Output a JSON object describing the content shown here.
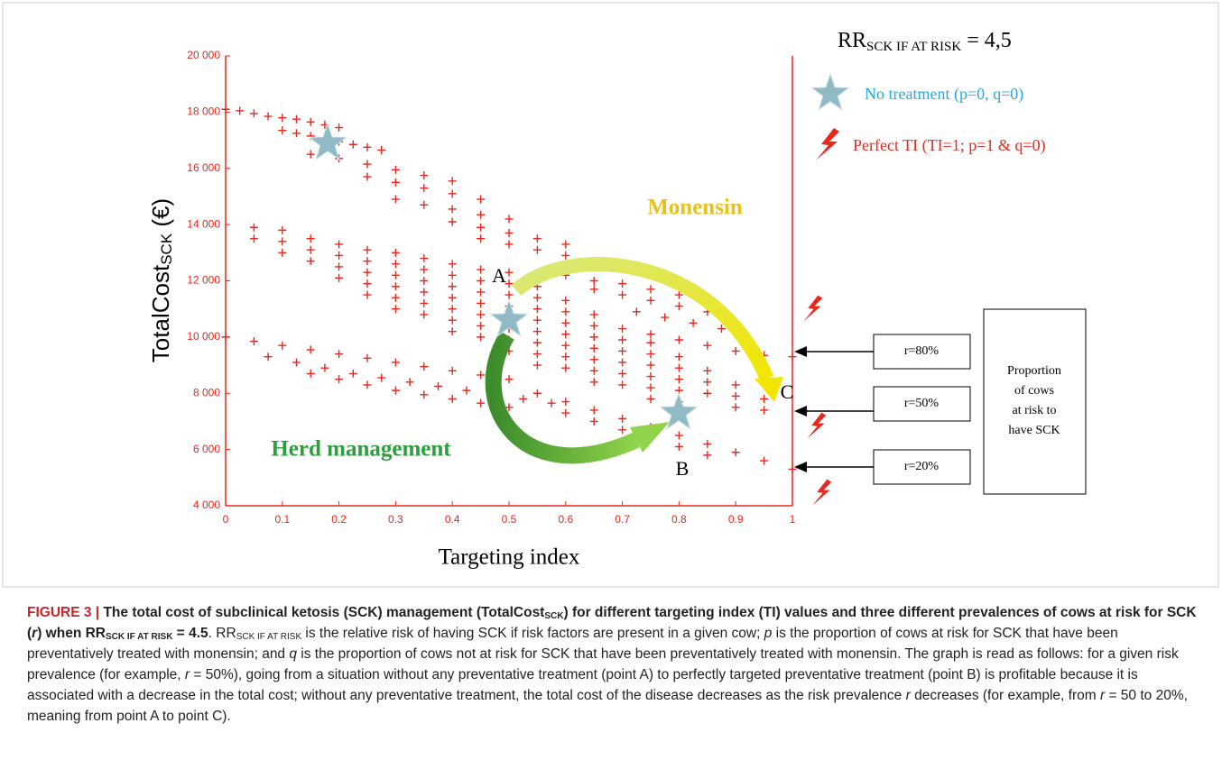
{
  "chart_data": {
    "type": "scatter",
    "xlabel": "Targeting index",
    "ylabel": {
      "main": "TotalCost",
      "sub": "SCK",
      "unit": " (€)"
    },
    "xlim": [
      0,
      1
    ],
    "ylim": [
      4000,
      20000
    ],
    "xticks": [
      0,
      0.1,
      0.2,
      0.3,
      0.4,
      0.5,
      0.6,
      0.7,
      0.8,
      0.9,
      1
    ],
    "yticks": [
      {
        "value": 4000,
        "label": "4 000"
      },
      {
        "value": 6000,
        "label": "6 000"
      },
      {
        "value": 8000,
        "label": "8 000"
      },
      {
        "value": 10000,
        "label": "10 000"
      },
      {
        "value": 12000,
        "label": "12 000"
      },
      {
        "value": 14000,
        "label": "14 000"
      },
      {
        "value": 16000,
        "label": "16 000"
      },
      {
        "value": 18000,
        "label": "18 000"
      },
      {
        "value": 20000,
        "label": "20 000"
      }
    ],
    "axis_color": "#e8281e",
    "series": [
      {
        "name": "r=80%",
        "color": "#e8281e",
        "x": [
          0,
          0.025,
          0.05,
          0.075,
          0.1,
          0.125,
          0.15,
          0.175,
          0.2,
          0.1,
          0.125,
          0.15,
          0.175,
          0.2,
          0.225,
          0.25,
          0.275,
          0.15,
          0.2,
          0.25,
          0.3,
          0.35,
          0.4,
          0.25,
          0.3,
          0.35,
          0.4,
          0.45,
          0.3,
          0.35,
          0.4,
          0.45,
          0.5,
          0.4,
          0.45,
          0.5,
          0.55,
          0.6,
          0.45,
          0.5,
          0.55,
          0.6,
          0.65,
          0.7,
          0.6,
          0.65,
          0.7,
          0.75,
          0.8,
          0.65,
          0.7,
          0.75,
          0.8,
          0.85,
          0.725,
          0.775,
          0.825,
          0.875,
          0.9,
          0.75,
          0.8,
          0.85,
          0.9,
          0.95,
          1
        ],
        "values": [
          18100,
          18050,
          17950,
          17850,
          17800,
          17750,
          17650,
          17550,
          17450,
          17350,
          17250,
          17150,
          17050,
          16950,
          16850,
          16750,
          16650,
          16500,
          16350,
          16150,
          15950,
          15750,
          15550,
          15700,
          15500,
          15300,
          15100,
          14900,
          14900,
          14700,
          14550,
          14350,
          14200,
          14100,
          13900,
          13700,
          13500,
          13300,
          13500,
          13300,
          13100,
          12900,
          12700,
          12500,
          12200,
          12000,
          11900,
          11700,
          11500,
          11700,
          11500,
          11300,
          11100,
          10900,
          10900,
          10700,
          10500,
          10300,
          10200,
          10100,
          9900,
          9700,
          9500,
          9350,
          9300
        ]
      },
      {
        "name": "r=50%",
        "color": "#e8281e",
        "x": [
          0.05,
          0.05,
          0.1,
          0.1,
          0.1,
          0.15,
          0.15,
          0.15,
          0.2,
          0.2,
          0.2,
          0.2,
          0.25,
          0.25,
          0.25,
          0.25,
          0.25,
          0.3,
          0.3,
          0.3,
          0.3,
          0.3,
          0.3,
          0.35,
          0.35,
          0.35,
          0.35,
          0.35,
          0.35,
          0.4,
          0.4,
          0.4,
          0.4,
          0.4,
          0.4,
          0.4,
          0.45,
          0.45,
          0.45,
          0.45,
          0.45,
          0.45,
          0.45,
          0.5,
          0.5,
          0.5,
          0.5,
          0.5,
          0.5,
          0.5,
          0.5,
          0.55,
          0.55,
          0.55,
          0.55,
          0.55,
          0.55,
          0.55,
          0.55,
          0.6,
          0.6,
          0.6,
          0.6,
          0.6,
          0.6,
          0.6,
          0.65,
          0.65,
          0.65,
          0.65,
          0.65,
          0.65,
          0.65,
          0.7,
          0.7,
          0.7,
          0.7,
          0.7,
          0.7,
          0.75,
          0.75,
          0.75,
          0.75,
          0.75,
          0.75,
          0.8,
          0.8,
          0.8,
          0.8,
          0.8,
          0.85,
          0.85,
          0.85,
          0.9,
          0.9,
          0.9,
          0.95,
          0.95
        ],
        "values": [
          13900,
          13500,
          13800,
          13400,
          13000,
          13500,
          13100,
          12700,
          13300,
          12900,
          12500,
          12100,
          13100,
          12700,
          12300,
          11900,
          11500,
          13000,
          12600,
          12200,
          11800,
          11400,
          11000,
          12800,
          12400,
          12000,
          11600,
          11200,
          10800,
          12600,
          12200,
          11800,
          11400,
          11000,
          10600,
          10200,
          12400,
          12000,
          11600,
          11200,
          10800,
          10400,
          10000,
          12300,
          11900,
          11500,
          11100,
          10700,
          10300,
          9900,
          9500,
          11800,
          11400,
          11000,
          10600,
          10200,
          9800,
          9400,
          9000,
          11300,
          10900,
          10500,
          10100,
          9700,
          9300,
          8900,
          10800,
          10400,
          10000,
          9600,
          9200,
          8800,
          8400,
          10300,
          9900,
          9500,
          9100,
          8700,
          8300,
          9800,
          9400,
          9000,
          8600,
          8200,
          7800,
          9300,
          8900,
          8500,
          8100,
          7700,
          8800,
          8400,
          8000,
          8300,
          7900,
          7500,
          7800,
          7400
        ]
      },
      {
        "name": "r=20%",
        "color": "#e8281e",
        "x": [
          0,
          0.05,
          0.1,
          0.15,
          0.2,
          0.25,
          0.3,
          0.35,
          0.4,
          0.45,
          0.5,
          0.075,
          0.125,
          0.175,
          0.225,
          0.275,
          0.325,
          0.375,
          0.425,
          0.475,
          0.525,
          0.575,
          0.15,
          0.2,
          0.25,
          0.3,
          0.35,
          0.4,
          0.45,
          0.5,
          0.55,
          0.6,
          0.65,
          0.7,
          0.75,
          0.8,
          0.85,
          0.9,
          0.95,
          1,
          0.6,
          0.65,
          0.7,
          0.75,
          0.8,
          0.85
        ],
        "values": [
          10000,
          9850,
          9700,
          9550,
          9400,
          9250,
          9100,
          8950,
          8800,
          8650,
          8500,
          9300,
          9100,
          8900,
          8700,
          8550,
          8400,
          8250,
          8100,
          7950,
          7800,
          7650,
          8700,
          8500,
          8300,
          8100,
          7950,
          7800,
          7650,
          7500,
          8000,
          7700,
          7400,
          7100,
          6800,
          6500,
          6200,
          5900,
          5600,
          5300,
          7300,
          7000,
          6700,
          6400,
          6100,
          5800
        ]
      }
    ],
    "annotations": {
      "rr": {
        "main": "RR",
        "sub": "SCK IF AT RISK",
        "value": " = 4,5"
      },
      "no_treatment": "No treatment (p=0, q=0)",
      "perfect_ti": "Perfect TI (TI=1; p=1 & q=0)",
      "monensin": "Monensin",
      "herd_management": "Herd management",
      "point_a": "A",
      "point_b": "B",
      "point_c": "C",
      "proportion_box": [
        "Proportion",
        "of cows",
        "at risk to",
        "have SCK"
      ]
    }
  },
  "caption": {
    "label": "FIGURE 3 |",
    "title": [
      "The total cost of subclinical ketosis (SCK) management (TotalCost",
      "SCK",
      ") for different targeting index (TI) values and three different prevalences of cows at risk for SCK (",
      "r",
      ") when RR",
      "SCK IF AT RISK",
      " = 4.5"
    ],
    "body": [
      "RR",
      "SCK IF AT RISK",
      " is the relative risk of having SCK if risk factors are present in a given cow; ",
      "p",
      " is the proportion of cows at risk for SCK that have been preventatively treated with monensin; and ",
      "q",
      " is the proportion of cows not at risk for SCK that have been preventatively treated with monensin. The graph is read as follows: for a given risk prevalence (for example, ",
      "r",
      " = 50%), going from a situation without any preventative treatment (point A) to perfectly targeted preventative treatment (point B) is profitable because it is associated with a decrease in the total cost; without any preventative treatment, the total cost of the disease decreases as the risk prevalence ",
      "r",
      " decreases (for example, from ",
      "r",
      " = 50 to 20%, meaning from point A to point C)."
    ]
  }
}
